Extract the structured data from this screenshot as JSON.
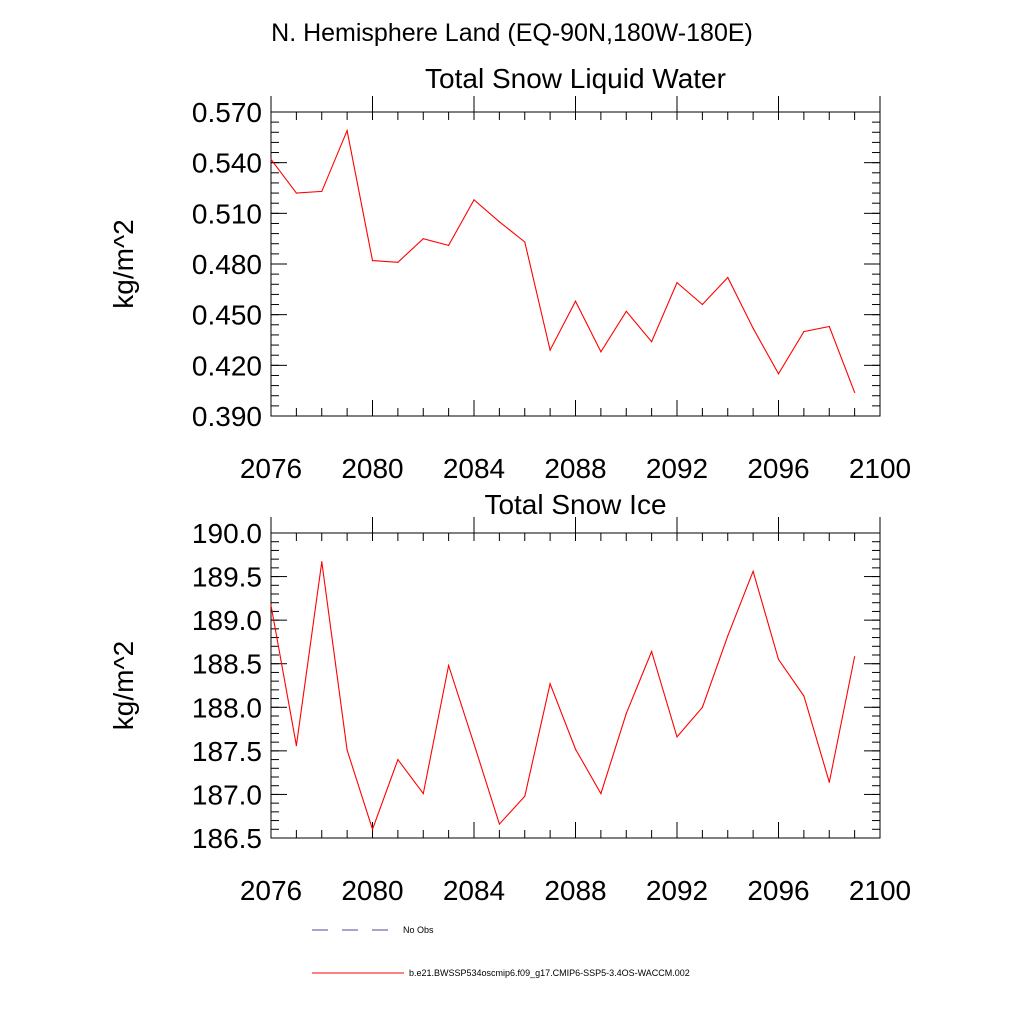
{
  "figure": {
    "region_title": "N. Hemisphere Land (EQ-90N,180W-180E)"
  },
  "chart_data": [
    {
      "type": "line",
      "title": "Total Snow Liquid Water",
      "xlabel": "",
      "ylabel": "kg/m^2",
      "xlim": [
        2076,
        2100
      ],
      "ylim": [
        0.39,
        0.57
      ],
      "x_ticks": [
        2076,
        2080,
        2084,
        2088,
        2092,
        2096,
        2100
      ],
      "x_tick_labels": [
        "2076",
        "2080",
        "2084",
        "2088",
        "2092",
        "2096",
        "2100"
      ],
      "y_ticks": [
        0.39,
        0.42,
        0.45,
        0.48,
        0.51,
        0.54,
        0.57
      ],
      "y_tick_labels": [
        "0.390",
        "0.420",
        "0.450",
        "0.480",
        "0.510",
        "0.540",
        "0.570"
      ],
      "grid": false,
      "series": [
        {
          "name": "b.e21.BWSSP534oscmip6.f09_g17.CMIP6-SSP5-3.4OS-WACCM.002",
          "color": "#ff0000",
          "x": [
            2076,
            2077,
            2078,
            2079,
            2080,
            2081,
            2082,
            2083,
            2084,
            2085,
            2086,
            2087,
            2088,
            2089,
            2090,
            2091,
            2092,
            2093,
            2094,
            2095,
            2096,
            2097,
            2098,
            2099
          ],
          "values": [
            0.542,
            0.522,
            0.523,
            0.559,
            0.482,
            0.481,
            0.495,
            0.491,
            0.518,
            0.505,
            0.493,
            0.429,
            0.458,
            0.428,
            0.452,
            0.434,
            0.469,
            0.456,
            0.472,
            0.442,
            0.415,
            0.44,
            0.443,
            0.404
          ]
        }
      ]
    },
    {
      "type": "line",
      "title": "Total Snow Ice",
      "xlabel": "",
      "ylabel": "kg/m^2",
      "xlim": [
        2076,
        2100
      ],
      "ylim": [
        186.5,
        190.0
      ],
      "x_ticks": [
        2076,
        2080,
        2084,
        2088,
        2092,
        2096,
        2100
      ],
      "x_tick_labels": [
        "2076",
        "2080",
        "2084",
        "2088",
        "2092",
        "2096",
        "2100"
      ],
      "y_ticks": [
        186.5,
        187.0,
        187.5,
        188.0,
        188.5,
        189.0,
        189.5,
        190.0
      ],
      "y_tick_labels": [
        "186.5",
        "187.0",
        "187.5",
        "188.0",
        "188.5",
        "189.0",
        "189.5",
        "190.0"
      ],
      "grid": false,
      "series": [
        {
          "name": "b.e21.BWSSP534oscmip6.f09_g17.CMIP6-SSP5-3.4OS-WACCM.002",
          "color": "#ff0000",
          "x": [
            2076,
            2077,
            2078,
            2079,
            2080,
            2081,
            2082,
            2083,
            2084,
            2085,
            2086,
            2087,
            2088,
            2089,
            2090,
            2091,
            2092,
            2093,
            2094,
            2095,
            2096,
            2097,
            2098,
            2099
          ],
          "values": [
            189.17,
            187.56,
            189.67,
            187.51,
            186.6,
            187.4,
            187.01,
            188.48,
            187.58,
            186.66,
            186.98,
            188.27,
            187.52,
            187.01,
            187.93,
            188.64,
            187.66,
            188.0,
            188.82,
            189.56,
            188.55,
            188.13,
            187.14,
            188.58
          ]
        }
      ]
    }
  ],
  "legend": {
    "placement": "bottom",
    "entries": [
      {
        "label": "No Obs",
        "style": "dashed",
        "color": "#4d4d99"
      },
      {
        "label": "b.e21.BWSSP534oscmip6.f09_g17.CMIP6-SSP5-3.4OS-WACCM.002",
        "style": "solid",
        "color": "#ff0000"
      }
    ]
  }
}
